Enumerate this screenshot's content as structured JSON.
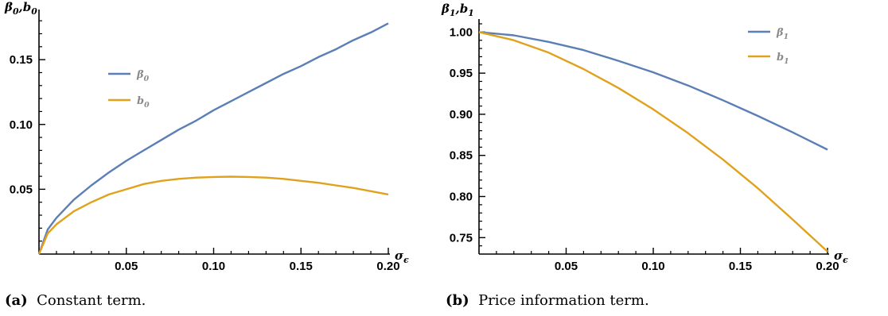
{
  "colors": {
    "series1": "#5b7fb5",
    "series2": "#e0a21d",
    "axis": "#000000"
  },
  "chart_data": [
    {
      "type": "line",
      "ylabel_main": "β",
      "ylabel_sub1": "0",
      "ylabel_sep": ",",
      "ylabel_b": "b",
      "ylabel_sub2": "0",
      "xlabel_main": "σ",
      "xlabel_sub": "ϵ",
      "xlim": [
        0,
        0.2
      ],
      "ylim": [
        0,
        0.185
      ],
      "xticks": [
        0.05,
        0.1,
        0.15,
        0.2
      ],
      "xtick_labels": [
        "0.05",
        "0.10",
        "0.15",
        "0.20"
      ],
      "yticks": [
        0.05,
        0.1,
        0.15
      ],
      "ytick_labels": [
        "0.05",
        "0.10",
        "0.15"
      ],
      "legend": "upper-middle",
      "series": [
        {
          "name": "β",
          "name_sub": "0",
          "color": "#5b7fb5",
          "x": [
            0,
            0.005,
            0.01,
            0.02,
            0.03,
            0.04,
            0.05,
            0.06,
            0.07,
            0.08,
            0.09,
            0.1,
            0.11,
            0.12,
            0.13,
            0.14,
            0.15,
            0.16,
            0.17,
            0.18,
            0.19,
            0.2
          ],
          "y": [
            0,
            0.019,
            0.028,
            0.042,
            0.053,
            0.063,
            0.072,
            0.08,
            0.088,
            0.096,
            0.103,
            0.111,
            0.118,
            0.125,
            0.132,
            0.139,
            0.145,
            0.152,
            0.158,
            0.165,
            0.171,
            0.178
          ]
        },
        {
          "name": "b",
          "name_sub": "0",
          "color": "#e0a21d",
          "x": [
            0,
            0.005,
            0.01,
            0.02,
            0.03,
            0.04,
            0.05,
            0.06,
            0.07,
            0.08,
            0.09,
            0.1,
            0.11,
            0.12,
            0.13,
            0.14,
            0.15,
            0.16,
            0.17,
            0.18,
            0.19,
            0.2
          ],
          "y": [
            0,
            0.016,
            0.023,
            0.033,
            0.04,
            0.046,
            0.05,
            0.054,
            0.0565,
            0.058,
            0.059,
            0.0595,
            0.0597,
            0.0595,
            0.059,
            0.058,
            0.0565,
            0.055,
            0.053,
            0.051,
            0.0485,
            0.046
          ]
        }
      ]
    },
    {
      "type": "line",
      "ylabel_main": "β",
      "ylabel_sub1": "1",
      "ylabel_sep": ",",
      "ylabel_b": "b",
      "ylabel_sub2": "1",
      "xlabel_main": "σ",
      "xlabel_sub": "ϵ",
      "xlim": [
        0,
        0.2
      ],
      "ylim": [
        0.73,
        1.01
      ],
      "xticks": [
        0.05,
        0.1,
        0.15,
        0.2
      ],
      "xtick_labels": [
        "0.05",
        "0.10",
        "0.15",
        "0.20"
      ],
      "yticks": [
        0.75,
        0.8,
        0.85,
        0.9,
        0.95,
        1.0
      ],
      "ytick_labels": [
        "0.75",
        "0.80",
        "0.85",
        "0.90",
        "0.95",
        "1.00"
      ],
      "legend": "top-right",
      "series": [
        {
          "name": "β",
          "name_sub": "1",
          "color": "#5b7fb5",
          "x": [
            0,
            0.02,
            0.04,
            0.06,
            0.08,
            0.1,
            0.12,
            0.14,
            0.16,
            0.18,
            0.2
          ],
          "y": [
            1.0,
            0.996,
            0.988,
            0.978,
            0.965,
            0.951,
            0.935,
            0.917,
            0.898,
            0.878,
            0.857
          ]
        },
        {
          "name": "b",
          "name_sub": "1",
          "color": "#e0a21d",
          "x": [
            0,
            0.02,
            0.04,
            0.06,
            0.08,
            0.1,
            0.12,
            0.14,
            0.16,
            0.18,
            0.2
          ],
          "y": [
            1.0,
            0.99,
            0.975,
            0.955,
            0.932,
            0.906,
            0.877,
            0.845,
            0.81,
            0.772,
            0.733
          ]
        }
      ]
    }
  ],
  "captions": [
    {
      "tag": "(a)",
      "text": "Constant term."
    },
    {
      "tag": "(b)",
      "text": "Price information term."
    }
  ]
}
